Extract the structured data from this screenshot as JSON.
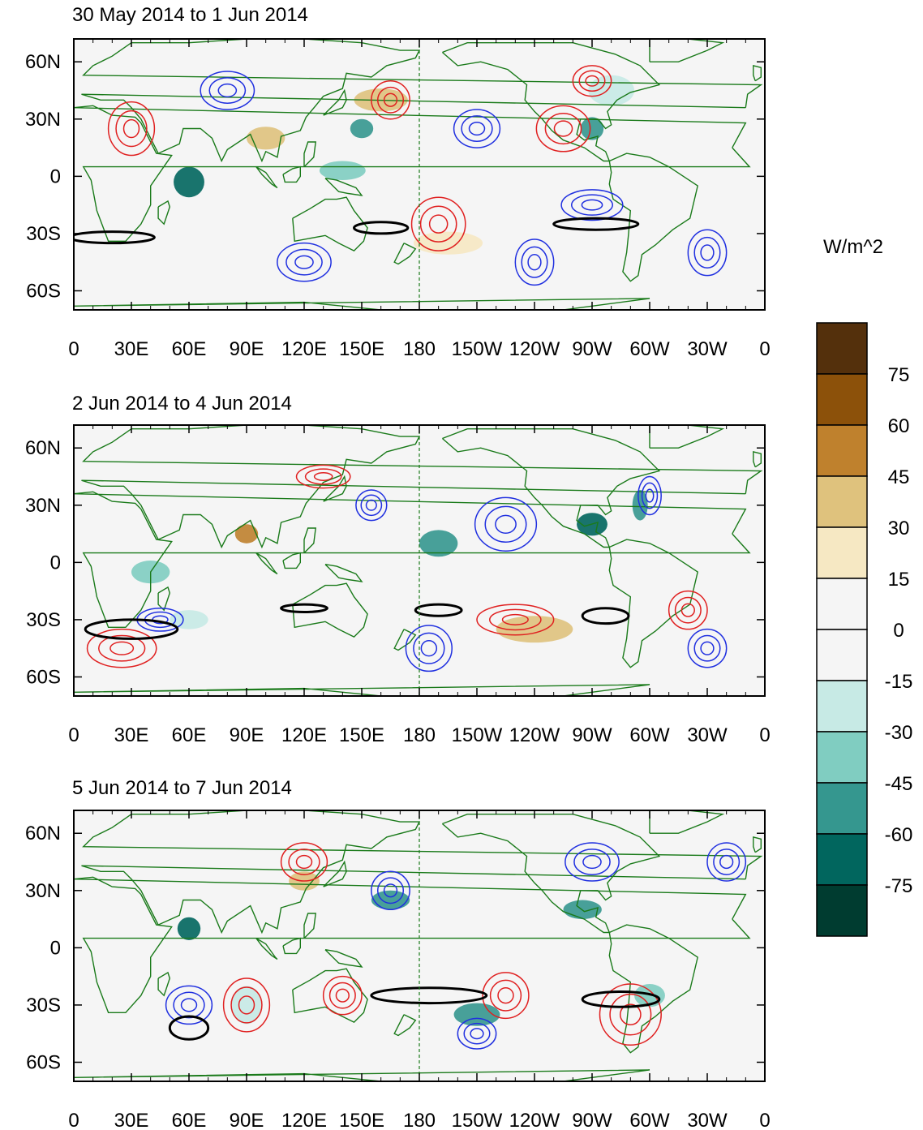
{
  "figure": {
    "unit_label": "W/m^2",
    "panels": [
      {
        "title": "30 May 2014 to 1 Jun 2014"
      },
      {
        "title": "2 Jun 2014 to 4 Jun 2014"
      },
      {
        "title": "5 Jun 2014 to 7 Jun 2014"
      }
    ],
    "lon_ticks": [
      "0",
      "30E",
      "60E",
      "90E",
      "120E",
      "150E",
      "180",
      "150W",
      "120W",
      "90W",
      "60W",
      "30W",
      "0"
    ],
    "lat_ticks": [
      "60N",
      "30N",
      "0",
      "30S",
      "60S"
    ],
    "colorbar": {
      "labels": [
        "75",
        "60",
        "45",
        "30",
        "15",
        "0",
        "-15",
        "-30",
        "-45",
        "-60",
        "-75"
      ],
      "colors": [
        "#54300c",
        "#8c510a",
        "#bf812d",
        "#dfc27d",
        "#f6e8c3",
        "#f5f5f5",
        "#f5f5f5",
        "#c7eae5",
        "#80cdc1",
        "#35978f",
        "#01665e",
        "#003c30"
      ]
    },
    "colors": {
      "land_outline": "#1a7a1a",
      "positive_contour": "#e02020",
      "negative_contour": "#2030e0",
      "jet_contour": "#000000"
    }
  }
}
